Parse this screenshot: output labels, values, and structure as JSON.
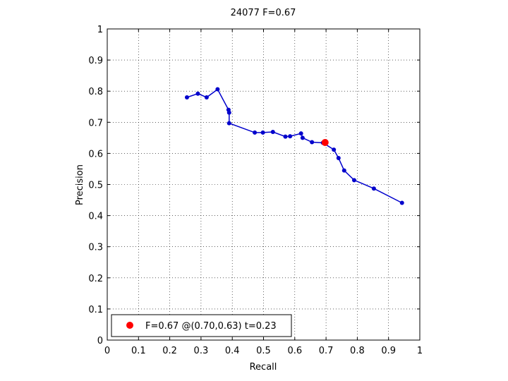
{
  "chart_data": {
    "type": "line",
    "title": "24077 F=0.67",
    "xlabel": "Recall",
    "ylabel": "Precision",
    "xlim": [
      0,
      1
    ],
    "ylim": [
      0,
      1
    ],
    "grid": true,
    "legend_position": "bottom-left",
    "x_ticks": [
      "0",
      "0.1",
      "0.2",
      "0.3",
      "0.4",
      "0.5",
      "0.6",
      "0.7",
      "0.8",
      "0.9",
      "1"
    ],
    "y_ticks": [
      "0",
      "0.1",
      "0.2",
      "0.3",
      "0.4",
      "0.5",
      "0.6",
      "0.7",
      "0.8",
      "0.9",
      "1"
    ],
    "series": [
      {
        "color": "#0000cc",
        "points": [
          [
            0.255,
            0.78
          ],
          [
            0.29,
            0.792
          ],
          [
            0.318,
            0.78
          ],
          [
            0.353,
            0.806
          ],
          [
            0.388,
            0.74
          ],
          [
            0.39,
            0.731
          ],
          [
            0.39,
            0.697
          ],
          [
            0.472,
            0.667
          ],
          [
            0.498,
            0.667
          ],
          [
            0.53,
            0.669
          ],
          [
            0.57,
            0.654
          ],
          [
            0.585,
            0.655
          ],
          [
            0.62,
            0.664
          ],
          [
            0.625,
            0.65
          ],
          [
            0.655,
            0.636
          ],
          [
            0.69,
            0.634
          ],
          [
            0.725,
            0.612
          ],
          [
            0.74,
            0.585
          ],
          [
            0.758,
            0.545
          ],
          [
            0.79,
            0.514
          ],
          [
            0.853,
            0.487
          ],
          [
            0.943,
            0.441
          ]
        ]
      }
    ],
    "highlight": {
      "label": "F=0.67 @(0.70,0.63) t=0.23",
      "x": 0.697,
      "y": 0.635,
      "color": "#ff0000"
    }
  }
}
